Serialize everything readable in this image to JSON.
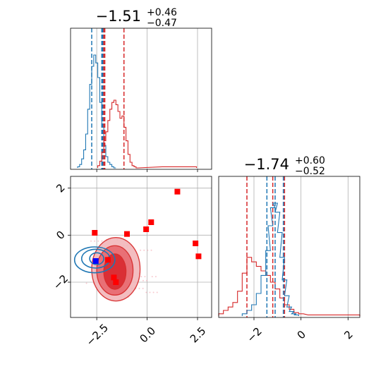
{
  "colors": {
    "red": "#d62728",
    "blue": "#1f77b4",
    "grid": "#b0b0b0",
    "axis": "#000000"
  },
  "titles": {
    "top": {
      "main": "−1.51",
      "sup": "+0.46",
      "sub": "−0.47"
    },
    "right": {
      "main": "−1.74",
      "sup": "+0.60",
      "sub": "−0.52"
    }
  },
  "chart_data": [
    {
      "type": "histogram",
      "panel": "top-left marginal",
      "xlim": [
        -3.8,
        3.2
      ],
      "xticks": [
        -2.5,
        0.0,
        2.5
      ],
      "grid": true,
      "series": [
        {
          "color": "#1f77b4",
          "bins_x": [
            -3.4,
            -3.3,
            -3.2,
            -3.1,
            -3.0,
            -2.9,
            -2.8,
            -2.7,
            -2.6,
            -2.5,
            -2.4,
            -2.3,
            -2.2,
            -2.1,
            -2.0,
            -1.9,
            -1.8,
            -1.7,
            -1.6
          ],
          "heights": [
            0.01,
            0.03,
            0.08,
            0.16,
            0.3,
            0.52,
            0.74,
            0.9,
            1.0,
            0.93,
            0.8,
            0.58,
            0.36,
            0.2,
            0.1,
            0.05,
            0.03,
            0.01,
            0.0
          ],
          "quantiles": [
            -2.75,
            -2.25,
            -2.2
          ]
        },
        {
          "color": "#d62728",
          "bins_x": [
            -2.4,
            -2.3,
            -2.2,
            -2.1,
            -2.0,
            -1.9,
            -1.8,
            -1.7,
            -1.6,
            -1.5,
            -1.4,
            -1.3,
            -1.2,
            -1.1,
            -1.0,
            -0.9,
            -0.8,
            -0.7,
            -0.6,
            -0.5,
            0.8,
            1.2,
            1.6,
            2.0,
            2.4
          ],
          "heights": [
            0.02,
            0.06,
            0.14,
            0.24,
            0.32,
            0.42,
            0.52,
            0.58,
            0.6,
            0.56,
            0.5,
            0.44,
            0.46,
            0.36,
            0.24,
            0.12,
            0.05,
            0.02,
            0.01,
            0.0,
            0.01,
            0.01,
            0.01,
            0.01,
            0.01
          ],
          "quantiles": [
            -2.15,
            -2.1,
            -1.15
          ]
        }
      ]
    },
    {
      "type": "scatter",
      "panel": "bottom-left 2D",
      "xlim": [
        -3.8,
        3.2
      ],
      "ylim": [
        -3.5,
        2.5
      ],
      "xticks": [
        -2.5,
        0.0,
        2.5
      ],
      "xtick_labels": [
        "−2.5",
        "0.0",
        "2.5"
      ],
      "yticks": [
        -2,
        0,
        2
      ],
      "ytick_labels": [
        "−2",
        "0",
        "2"
      ],
      "grid": true,
      "red_points": [
        {
          "x": 1.5,
          "y": 1.85
        },
        {
          "x": 0.2,
          "y": 0.55
        },
        {
          "x": -0.05,
          "y": 0.25
        },
        {
          "x": -1.0,
          "y": 0.05
        },
        {
          "x": -2.6,
          "y": 0.1
        },
        {
          "x": 2.4,
          "y": -0.35
        },
        {
          "x": 2.55,
          "y": -0.9
        },
        {
          "x": -1.95,
          "y": -1.05
        },
        {
          "x": -1.65,
          "y": -1.8
        },
        {
          "x": -1.55,
          "y": -2.0
        }
      ],
      "blue_points": [
        {
          "x": -2.55,
          "y": -1.1
        }
      ],
      "red_contours": [
        {
          "cx": -1.55,
          "cy": -1.45,
          "rx": 1.2,
          "ry": 1.35
        },
        {
          "cx": -1.6,
          "cy": -1.5,
          "rx": 0.9,
          "ry": 1.05
        },
        {
          "cx": -1.6,
          "cy": -1.55,
          "rx": 0.55,
          "ry": 0.75
        }
      ],
      "blue_contours": [
        {
          "cx": -2.6,
          "cy": -1.05,
          "rx": 1.0,
          "ry": 0.55
        },
        {
          "cx": -2.55,
          "cy": -1.0,
          "rx": 0.7,
          "ry": 0.4
        },
        {
          "cx": -2.5,
          "cy": -1.0,
          "rx": 0.35,
          "ry": 0.25
        }
      ]
    },
    {
      "type": "histogram",
      "panel": "bottom-right marginal",
      "xlim": [
        -3.5,
        2.5
      ],
      "xticks": [
        -2,
        0,
        2
      ],
      "xtick_labels": [
        "−2",
        "0",
        "2"
      ],
      "grid": true,
      "series": [
        {
          "color": "#d62728",
          "bins_x": [
            -3.4,
            -3.2,
            -3.0,
            -2.8,
            -2.6,
            -2.4,
            -2.2,
            -2.0,
            -1.8,
            -1.6,
            -1.4,
            -1.2,
            -1.0,
            -0.8,
            -0.6,
            -0.4,
            -0.2,
            0.0,
            0.4,
            0.8,
            1.2,
            1.6,
            2.0,
            2.4
          ],
          "heights": [
            0.02,
            0.05,
            0.08,
            0.12,
            0.22,
            0.38,
            0.52,
            0.48,
            0.44,
            0.4,
            0.36,
            0.3,
            0.24,
            0.16,
            0.1,
            0.06,
            0.03,
            0.02,
            0.01,
            0.01,
            0.01,
            0.01,
            0.01,
            0.01
          ],
          "quantiles": [
            -2.3,
            -1.2,
            -0.7
          ]
        },
        {
          "color": "#1f77b4",
          "bins_x": [
            -2.4,
            -2.2,
            -2.0,
            -1.8,
            -1.6,
            -1.4,
            -1.3,
            -1.2,
            -1.1,
            -1.0,
            -0.9,
            -0.8,
            -0.7,
            -0.6,
            -0.5,
            -0.4,
            -0.3,
            -0.2
          ],
          "heights": [
            0.02,
            0.05,
            0.1,
            0.2,
            0.36,
            0.58,
            0.8,
            0.96,
            1.0,
            0.92,
            0.74,
            0.52,
            0.32,
            0.18,
            0.08,
            0.04,
            0.02,
            0.01
          ],
          "quantiles": [
            -1.45,
            -1.1,
            -0.75
          ]
        }
      ]
    }
  ]
}
